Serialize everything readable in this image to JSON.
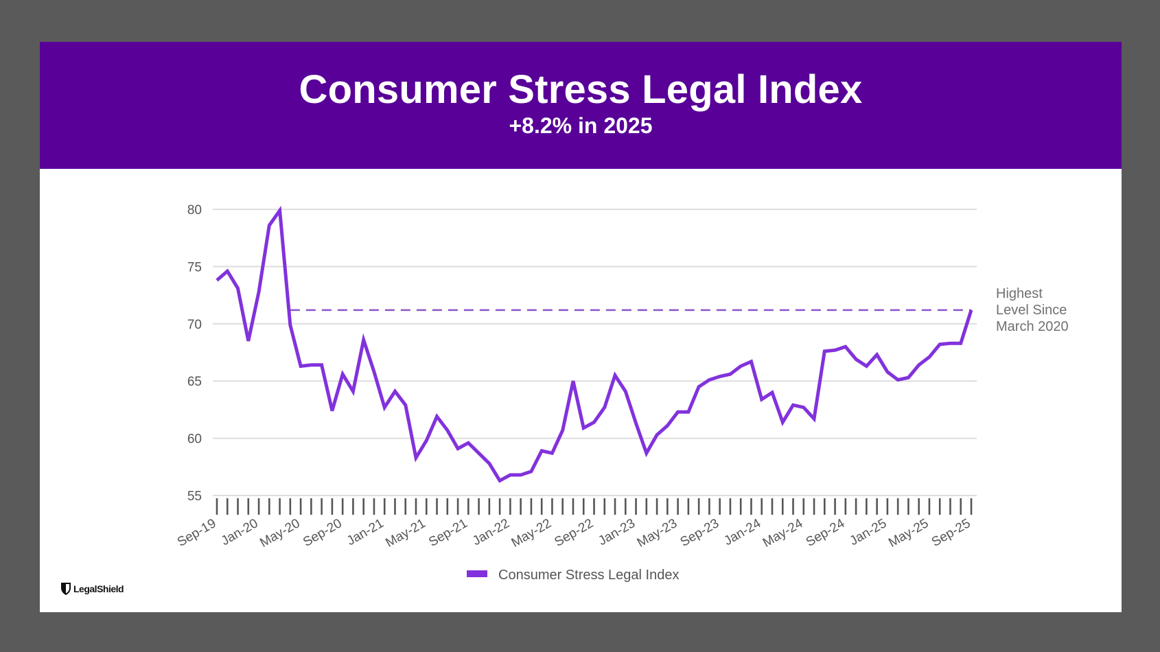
{
  "header": {
    "title": "Consumer Stress Legal Index",
    "subtitle": "+8.2% in 2025"
  },
  "brand": {
    "logo_text": "LegalShield",
    "logo_icon": "shield-icon"
  },
  "colors": {
    "banner": "#580098",
    "line": "#8232dc",
    "reference_line": "#8e5cc9",
    "grid": "#dddddd",
    "background": "#5a5a5a"
  },
  "chart_data": {
    "type": "line",
    "title": "Consumer Stress Legal Index",
    "subtitle": "+8.2% in 2025",
    "xlabel": "",
    "ylabel": "",
    "ylim": [
      55,
      80
    ],
    "yticks": [
      55,
      60,
      65,
      70,
      75,
      80
    ],
    "grid": true,
    "legend_position": "bottom",
    "x": [
      "Sep-19",
      "Oct-19",
      "Nov-19",
      "Dec-19",
      "Jan-20",
      "Feb-20",
      "Mar-20",
      "Apr-20",
      "May-20",
      "Jun-20",
      "Jul-20",
      "Aug-20",
      "Sep-20",
      "Oct-20",
      "Nov-20",
      "Dec-20",
      "Jan-21",
      "Feb-21",
      "Mar-21",
      "Apr-21",
      "May-21",
      "Jun-21",
      "Jul-21",
      "Aug-21",
      "Sep-21",
      "Oct-21",
      "Nov-21",
      "Dec-21",
      "Jan-22",
      "Feb-22",
      "Mar-22",
      "Apr-22",
      "May-22",
      "Jun-22",
      "Jul-22",
      "Aug-22",
      "Sep-22",
      "Oct-22",
      "Nov-22",
      "Dec-22",
      "Jan-23",
      "Feb-23",
      "Mar-23",
      "Apr-23",
      "May-23",
      "Jun-23",
      "Jul-23",
      "Aug-23",
      "Sep-23",
      "Oct-23",
      "Nov-23",
      "Dec-23",
      "Jan-24",
      "Feb-24",
      "Mar-24",
      "Apr-24",
      "May-24",
      "Jun-24",
      "Jul-24",
      "Aug-24",
      "Sep-24",
      "Oct-24",
      "Nov-24",
      "Dec-24",
      "Jan-25",
      "Feb-25",
      "Mar-25",
      "Apr-25",
      "May-25",
      "Jun-25",
      "Jul-25",
      "Aug-25",
      "Sep-25"
    ],
    "xtick_labels": [
      "Sep-19",
      "Jan-20",
      "May-20",
      "Sep-20",
      "Jan-21",
      "May-21",
      "Sep-21",
      "Jan-22",
      "May-22",
      "Sep-22",
      "Jan-23",
      "May-23",
      "Sep-23",
      "Jan-24",
      "May-24",
      "Sep-24",
      "Jan-25",
      "May-25",
      "Sep-25"
    ],
    "series": [
      {
        "name": "Consumer Stress Legal Index",
        "values": [
          73.8,
          74.6,
          73.1,
          68.5,
          72.8,
          78.6,
          79.9,
          69.9,
          66.3,
          66.4,
          66.4,
          62.4,
          65.6,
          64.1,
          68.6,
          65.8,
          62.7,
          64.1,
          62.9,
          58.3,
          59.8,
          61.9,
          60.7,
          59.1,
          59.6,
          58.7,
          57.8,
          56.3,
          56.8,
          56.8,
          57.1,
          58.9,
          58.7,
          60.7,
          65.0,
          60.9,
          61.4,
          62.7,
          65.5,
          64.1,
          61.3,
          58.7,
          60.3,
          61.1,
          62.3,
          62.3,
          64.5,
          65.1,
          65.4,
          65.6,
          66.3,
          66.7,
          63.4,
          64.0,
          61.4,
          62.9,
          62.7,
          61.7,
          67.6,
          67.7,
          68.0,
          66.9,
          66.3,
          67.3,
          65.8,
          65.1,
          65.3,
          66.4,
          67.1,
          68.2,
          68.3,
          68.3,
          71.2
        ]
      }
    ],
    "reference_line": {
      "value": 71.2,
      "from": "Apr-20",
      "to": "Sep-25",
      "style": "dashed",
      "annotation": [
        "Highest",
        "Level Since",
        "March 2020"
      ]
    }
  }
}
